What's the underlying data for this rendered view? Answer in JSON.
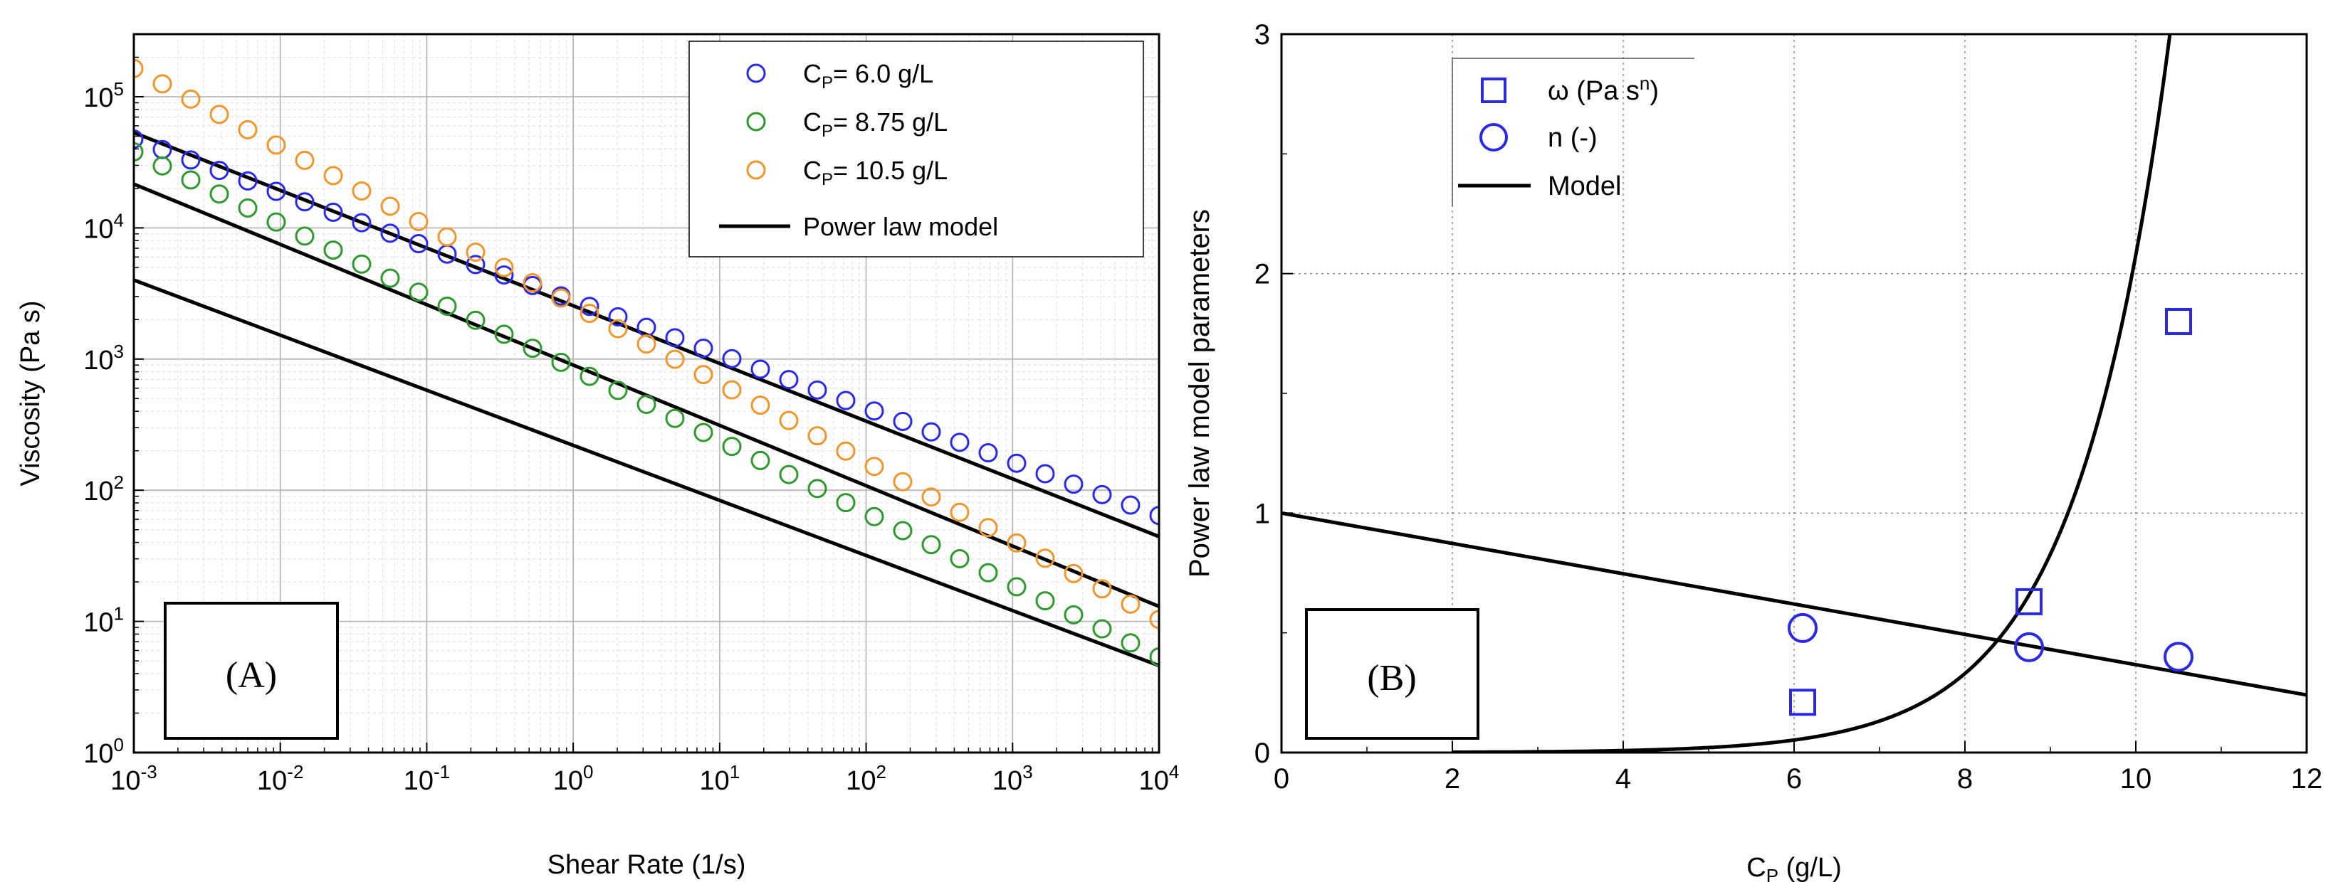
{
  "chart_data": [
    {
      "id": "A",
      "type": "scatter",
      "panel_label": "(A)",
      "xlabel": "Shear Rate (1/s)",
      "ylabel": "Viscosity (Pa s)",
      "xscale": "log",
      "yscale": "log",
      "xlim": [
        0.001,
        10000
      ],
      "ylim": [
        1,
        300000
      ],
      "x_tick_values": [
        0.001,
        0.01,
        0.1,
        1,
        10,
        100,
        1000,
        10000
      ],
      "x_ticks": [
        {
          "base": "10",
          "exp": "-3"
        },
        {
          "base": "10",
          "exp": "-2"
        },
        {
          "base": "10",
          "exp": "-1"
        },
        {
          "base": "10",
          "exp": "0"
        },
        {
          "base": "10",
          "exp": "1"
        },
        {
          "base": "10",
          "exp": "2"
        },
        {
          "base": "10",
          "exp": "3"
        },
        {
          "base": "10",
          "exp": "4"
        }
      ],
      "y_tick_values": [
        1,
        10,
        100,
        1000,
        10000,
        100000
      ],
      "y_ticks": [
        {
          "base": "10",
          "exp": "0"
        },
        {
          "base": "10",
          "exp": "1"
        },
        {
          "base": "10",
          "exp": "2"
        },
        {
          "base": "10",
          "exp": "3"
        },
        {
          "base": "10",
          "exp": "4"
        },
        {
          "base": "10",
          "exp": "5"
        }
      ],
      "grid": true,
      "legend_position": "top-right",
      "series": [
        {
          "name": "6.0 g/L",
          "legend_prefix": "C",
          "legend_sub": "P",
          "legend_suffix": "= 6.0 g/L",
          "color": "#2a2ae6",
          "marker": "circle",
          "K": 2800,
          "n": 0.59
        },
        {
          "name": "8.75 g/L",
          "legend_prefix": "C",
          "legend_sub": "P",
          "legend_suffix": "= 8.75 g/L",
          "color": "#2e9a2e",
          "marker": "circle",
          "K": 850,
          "n": 0.45
        },
        {
          "name": "10.5 g/L",
          "legend_prefix": "C",
          "legend_sub": "P",
          "legend_suffix": "= 10.5 g/L",
          "color": "#f0962a",
          "marker": "circle",
          "K": 2600,
          "n": 0.4
        }
      ],
      "model_lines": [
        {
          "K": 220,
          "n": 0.58
        },
        {
          "K": 900,
          "n": 0.54
        },
        {
          "K": 2550,
          "n": 0.56
        }
      ],
      "model_legend": "Power law model"
    },
    {
      "id": "B",
      "type": "scatter",
      "panel_label": "(B)",
      "xlabel_main": "C",
      "xlabel_sub": "P",
      "xlabel_suffix": " (g/L)",
      "ylabel": "Power law model parameters",
      "xlim": [
        0,
        12
      ],
      "ylim": [
        0,
        3
      ],
      "x_ticks": [
        "0",
        "2",
        "4",
        "6",
        "8",
        "10",
        "12"
      ],
      "y_ticks": [
        "0",
        "1",
        "2",
        "3"
      ],
      "grid": true,
      "legend_position": "top-left",
      "series": [
        {
          "name": "omega",
          "legend_main": "ω (Pa s",
          "legend_sup": "n",
          "legend_tail": ")",
          "marker": "square",
          "color": "#2a2ae6",
          "x": [
            6.1,
            8.75,
            10.5
          ],
          "y": [
            0.21,
            0.63,
            1.8
          ]
        },
        {
          "name": "n",
          "legend_main": "n (-)",
          "marker": "circle",
          "color": "#2a2ae6",
          "x": [
            6.1,
            8.75,
            10.5
          ],
          "y": [
            0.52,
            0.44,
            0.4
          ]
        }
      ],
      "model_legend": "Model",
      "model_n_line": {
        "intercept": 1.0,
        "slope": -0.0633
      },
      "model_omega_curve": {
        "a": 0.00021,
        "b": 0.92
      }
    }
  ]
}
